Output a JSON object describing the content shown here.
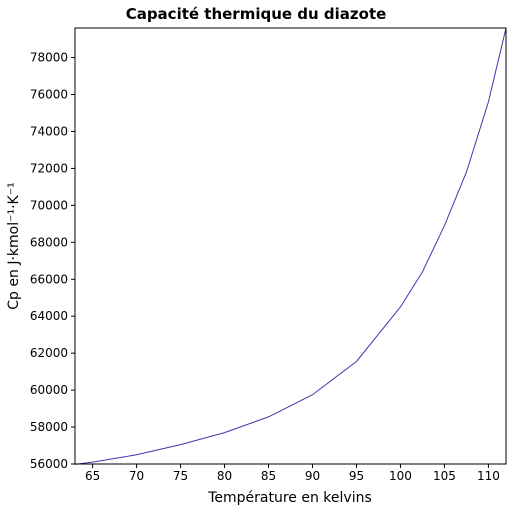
{
  "chart_data": {
    "type": "line",
    "title": "Capacité thermique du diazote",
    "xlabel": "Température en kelvins",
    "ylabel": "Cp en J·kmol⁻¹·K⁻¹",
    "x": [
      63,
      65,
      70,
      75,
      80,
      85,
      90,
      95,
      100,
      102.5,
      105,
      107.5,
      110,
      112
    ],
    "series": [
      {
        "color": "#3a3ab0",
        "values": [
          55980,
          56100,
          56500,
          57050,
          57700,
          58550,
          59750,
          61550,
          64500,
          66400,
          68900,
          71800,
          75600,
          79600
        ]
      }
    ],
    "xlim": [
      63,
      112
    ],
    "ylim": [
      56000,
      79600
    ],
    "xticks": [
      65,
      70,
      75,
      80,
      85,
      90,
      95,
      100,
      105,
      110
    ],
    "yticks": [
      56000,
      58000,
      60000,
      62000,
      64000,
      66000,
      68000,
      70000,
      72000,
      74000,
      76000,
      78000
    ]
  }
}
